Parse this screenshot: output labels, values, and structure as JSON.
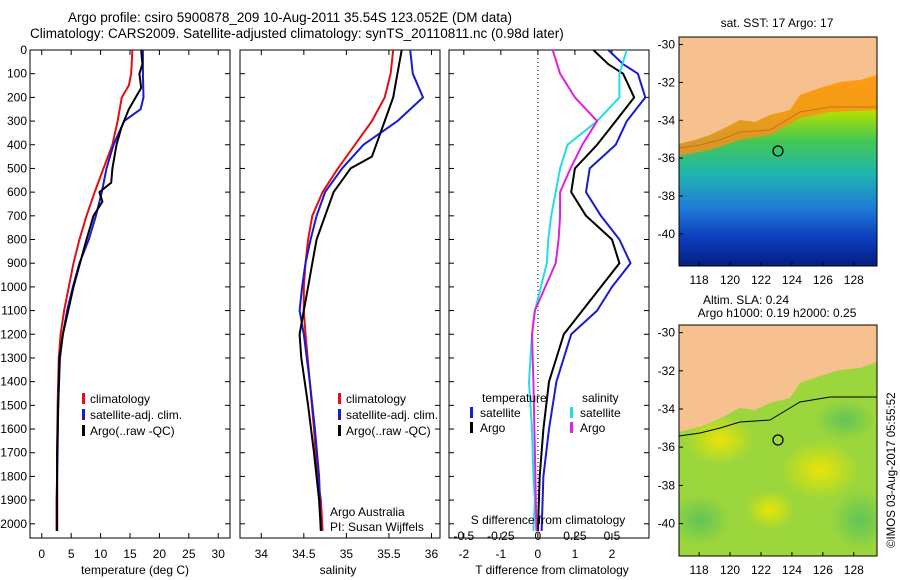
{
  "header": {
    "title_line1": "Argo profile: csiro 5900878_209 10-Aug-2011 35.54S 123.052E (DM data)",
    "title_line2": "Climatology: CARS2009. Satellite-adjusted climatology: synTS_20110811.nc (0.98d later)"
  },
  "colors": {
    "climatology": "#e01010",
    "satellite": "#1a1ad0",
    "argo": "#000000",
    "sal_satellite": "#22dde6",
    "sal_argo": "#e020e0",
    "land": "#f7c08f"
  },
  "annotations": {
    "argo_australia": "Argo Australia",
    "pi": "PI: Susan Wijffels",
    "imos_stamp": "©IMOS 03-Aug-2017 05:55:52"
  },
  "chart_data": [
    {
      "type": "line",
      "id": "temperature",
      "xlabel": "temperature (deg C)",
      "xlim": [
        -2,
        32
      ],
      "xticks": [
        0,
        5,
        10,
        15,
        20,
        25,
        30
      ],
      "ylim": [
        2060,
        0
      ],
      "yticks": [
        0,
        100,
        200,
        300,
        400,
        500,
        600,
        700,
        800,
        900,
        1000,
        1100,
        1200,
        1300,
        1400,
        1500,
        1600,
        1700,
        1800,
        1900,
        2000
      ],
      "legend": [
        "climatology",
        "satellite-adj. clim.",
        "Argo(..raw -QC)"
      ],
      "series": [
        {
          "name": "climatology",
          "color": "#e01010",
          "x": [
            15.4,
            15.2,
            14.8,
            13.6,
            12.9,
            12.0,
            10.5,
            9.0,
            7.6,
            6.4,
            5.4,
            4.6,
            3.8,
            3.2,
            2.9,
            2.7,
            2.6,
            2.6,
            2.5,
            2.5
          ],
          "y": [
            0,
            100,
            150,
            200,
            300,
            400,
            500,
            600,
            700,
            800,
            900,
            1000,
            1100,
            1200,
            1300,
            1500,
            1700,
            1800,
            1900,
            2030
          ]
        },
        {
          "name": "satellite-adj. clim.",
          "color": "#1a1ad0",
          "x": [
            17.2,
            17.2,
            17.3,
            16.8,
            14.0,
            12.2,
            11.0,
            10.2,
            9.2,
            8.0,
            6.4,
            5.3,
            4.3,
            3.6,
            3.1,
            2.8,
            2.7,
            2.6,
            2.6,
            2.6
          ],
          "y": [
            0,
            100,
            200,
            250,
            300,
            400,
            500,
            600,
            700,
            800,
            900,
            1000,
            1100,
            1200,
            1300,
            1500,
            1700,
            1800,
            1900,
            2030
          ]
        },
        {
          "name": "Argo(..raw -QC)",
          "color": "#000000",
          "x": [
            16.9,
            17.1,
            16.6,
            16.9,
            14.8,
            13.5,
            12.7,
            12.0,
            11.8,
            9.8,
            10.3,
            8.8,
            7.6,
            6.5,
            5.4,
            4.5,
            3.6,
            3.0,
            2.8,
            2.6,
            2.6,
            2.6
          ],
          "y": [
            0,
            60,
            100,
            160,
            250,
            330,
            400,
            500,
            560,
            600,
            640,
            700,
            800,
            900,
            1000,
            1100,
            1200,
            1300,
            1500,
            1700,
            1900,
            2030
          ]
        }
      ]
    },
    {
      "type": "line",
      "id": "salinity",
      "xlabel": "salinity",
      "xlim": [
        33.75,
        36.1
      ],
      "xticks": [
        34,
        34.5,
        35,
        35.5,
        36
      ],
      "xtick_labels": [
        "34",
        "34.5",
        "35",
        "35.5",
        "36"
      ],
      "ylim": [
        2060,
        0
      ],
      "legend": [
        "climatology",
        "satellite-adj. clim.",
        "Argo(..raw -QC)"
      ],
      "series": [
        {
          "name": "climatology",
          "color": "#e01010",
          "x": [
            35.55,
            35.52,
            35.45,
            35.3,
            35.1,
            34.9,
            34.72,
            34.6,
            34.55,
            34.52,
            34.5,
            34.5,
            34.52,
            34.57,
            34.62,
            34.66,
            34.7,
            34.72
          ],
          "y": [
            0,
            100,
            200,
            300,
            400,
            500,
            600,
            700,
            800,
            900,
            1000,
            1100,
            1200,
            1400,
            1600,
            1800,
            1900,
            2030
          ]
        },
        {
          "name": "satellite-adj. clim.",
          "color": "#1a1ad0",
          "x": [
            35.75,
            35.78,
            35.9,
            35.6,
            35.2,
            34.95,
            34.75,
            34.65,
            34.58,
            34.52,
            34.48,
            34.45,
            34.5,
            34.57,
            34.63,
            34.68,
            34.7
          ],
          "y": [
            0,
            100,
            200,
            300,
            400,
            500,
            600,
            700,
            800,
            900,
            1000,
            1100,
            1200,
            1400,
            1600,
            1800,
            2030
          ]
        },
        {
          "name": "Argo(..raw -QC)",
          "color": "#000000",
          "x": [
            35.65,
            35.6,
            35.55,
            35.45,
            35.35,
            35.3,
            35.05,
            34.85,
            34.75,
            34.65,
            34.6,
            34.55,
            34.5,
            34.45,
            34.47,
            34.55,
            34.62,
            34.68,
            34.7
          ],
          "y": [
            0,
            100,
            200,
            300,
            400,
            450,
            500,
            600,
            700,
            800,
            900,
            1000,
            1100,
            1200,
            1300,
            1500,
            1700,
            1900,
            2030
          ]
        }
      ]
    },
    {
      "type": "line",
      "id": "difference",
      "xlabel": "T difference from climatology",
      "xlabel_top": "S difference from climatology",
      "xlim": [
        -2.4,
        3.0
      ],
      "xticks": [
        -2,
        -1,
        0,
        1,
        2
      ],
      "xticks_salinity": [
        -0.5,
        -0.25,
        0,
        0.25,
        0.5
      ],
      "xtick_labels_salinity": [
        "-0.5",
        "-0.25",
        "0",
        "0.25",
        "0.5"
      ],
      "ylim": [
        2060,
        0
      ],
      "legend_groups": {
        "temperature": {
          "title": "temperature",
          "items": [
            "satellite",
            "Argo"
          ]
        },
        "salinity": {
          "title": "salinity",
          "items": [
            "satellite",
            "Argo"
          ]
        }
      },
      "series": [
        {
          "name": "T satellite",
          "color": "#1a1ad0",
          "x": [
            1.9,
            2.3,
            2.7,
            2.9,
            2.4,
            2.1,
            1.4,
            1.3,
            1.7,
            2.2,
            2.5,
            2.0,
            1.6,
            0.9,
            0.7,
            0.5,
            0.3,
            0.15,
            0.1
          ],
          "y": [
            0,
            60,
            100,
            200,
            300,
            400,
            500,
            600,
            700,
            800,
            900,
            1000,
            1100,
            1200,
            1300,
            1400,
            1600,
            1800,
            2030
          ]
        },
        {
          "name": "T Argo",
          "color": "#000000",
          "x": [
            1.5,
            1.9,
            2.3,
            2.6,
            2.1,
            1.6,
            1.0,
            0.9,
            1.3,
            2.0,
            2.2,
            1.7,
            1.2,
            0.7,
            0.5,
            0.3,
            0.15,
            0.05,
            0.0
          ],
          "y": [
            0,
            60,
            100,
            200,
            300,
            400,
            500,
            600,
            700,
            800,
            900,
            1000,
            1100,
            1200,
            1300,
            1400,
            1600,
            1800,
            2030
          ]
        },
        {
          "name": "S satellite",
          "color": "#22dde6",
          "x": [
            0.6,
            0.55,
            0.55,
            0.4,
            0.2,
            0.15,
            0.12,
            0.09,
            0.07,
            0.06,
            0.02,
            -0.02,
            -0.04,
            -0.06,
            -0.04,
            -0.03,
            -0.02,
            -0.03
          ],
          "y": [
            0,
            100,
            200,
            300,
            400,
            500,
            600,
            700,
            800,
            900,
            1000,
            1100,
            1200,
            1400,
            1600,
            1800,
            1900,
            2030
          ]
        },
        {
          "name": "S Argo",
          "color": "#e020e0",
          "x": [
            0.1,
            0.15,
            0.25,
            0.4,
            0.3,
            0.22,
            0.15,
            0.15,
            0.14,
            0.12,
            0.05,
            -0.02,
            -0.04,
            -0.03,
            -0.02,
            -0.01
          ],
          "y": [
            0,
            100,
            200,
            300,
            400,
            500,
            600,
            700,
            800,
            900,
            1000,
            1100,
            1200,
            1400,
            1700,
            2030
          ]
        }
      ]
    },
    {
      "type": "heatmap",
      "id": "sst_map",
      "title": "sat. SST: 17 Argo: 17",
      "xticks": [
        118,
        120,
        122,
        124,
        126,
        128
      ],
      "yticks": [
        -30,
        -32,
        -34,
        -36,
        -38,
        -40
      ],
      "xlim": [
        116.7,
        129.5
      ],
      "ylim": [
        -41.7,
        -29.6
      ],
      "argo_position": [
        123.052,
        -35.54
      ]
    },
    {
      "type": "heatmap",
      "id": "sla_map",
      "title": "Altim. SLA: 0.24",
      "subtitle": "Argo h1000: 0.19 h2000: 0.25",
      "xticks": [
        118,
        120,
        122,
        124,
        126,
        128
      ],
      "yticks": [
        -30,
        -32,
        -34,
        -36,
        -38,
        -40
      ],
      "xlim": [
        116.7,
        129.5
      ],
      "ylim": [
        -41.7,
        -29.6
      ],
      "argo_position": [
        123.052,
        -35.54
      ]
    }
  ]
}
